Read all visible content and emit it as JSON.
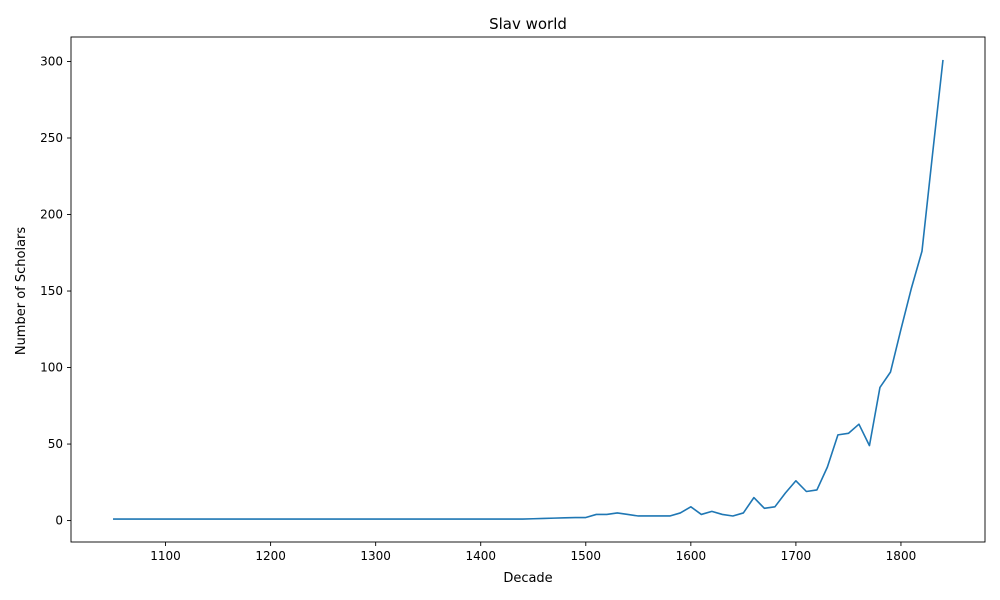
{
  "chart_data": {
    "type": "line",
    "title": "Slav world",
    "xlabel": "Decade",
    "ylabel": "Number of Scholars",
    "xlim": [
      1010,
      1880
    ],
    "ylim": [
      -14,
      316
    ],
    "x_ticks": [
      1100,
      1200,
      1300,
      1400,
      1500,
      1600,
      1700,
      1800
    ],
    "y_ticks": [
      0,
      50,
      100,
      150,
      200,
      250,
      300
    ],
    "grid": false,
    "series_color": "#1f77b4",
    "series": [
      {
        "x": [
          1050,
          1060,
          1070,
          1080,
          1090,
          1100,
          1110,
          1120,
          1130,
          1140,
          1150,
          1160,
          1170,
          1180,
          1190,
          1200,
          1210,
          1220,
          1230,
          1240,
          1250,
          1260,
          1270,
          1280,
          1290,
          1300,
          1310,
          1320,
          1330,
          1340,
          1350,
          1360,
          1370,
          1380,
          1390,
          1400,
          1410,
          1420,
          1430,
          1440,
          1450,
          1460,
          1470,
          1480,
          1490,
          1500,
          1510,
          1520,
          1530,
          1540,
          1550,
          1560,
          1570,
          1580,
          1590,
          1600,
          1610,
          1620,
          1630,
          1640,
          1650,
          1660,
          1670,
          1680,
          1690,
          1700,
          1710,
          1720,
          1730,
          1740,
          1750,
          1760,
          1770,
          1780,
          1790,
          1800,
          1810,
          1820,
          1830,
          1840
        ],
        "y": [
          1,
          1,
          1,
          1,
          1,
          1,
          1,
          1,
          1,
          1,
          1,
          1,
          1,
          1,
          1,
          1,
          1,
          1,
          1,
          1,
          1,
          1,
          1,
          1,
          1,
          1,
          1,
          1,
          1,
          1,
          1,
          1,
          1,
          1,
          1,
          1,
          1,
          1,
          1,
          1,
          1.2,
          1.4,
          1.6,
          1.8,
          2,
          2,
          4,
          4,
          5,
          4,
          3,
          3,
          3,
          3,
          5,
          9,
          4,
          6,
          4,
          3,
          5,
          15,
          8,
          9,
          18,
          26,
          19,
          20,
          35,
          56,
          57,
          63,
          49,
          87,
          97,
          125,
          152,
          176,
          239,
          301
        ]
      }
    ]
  }
}
